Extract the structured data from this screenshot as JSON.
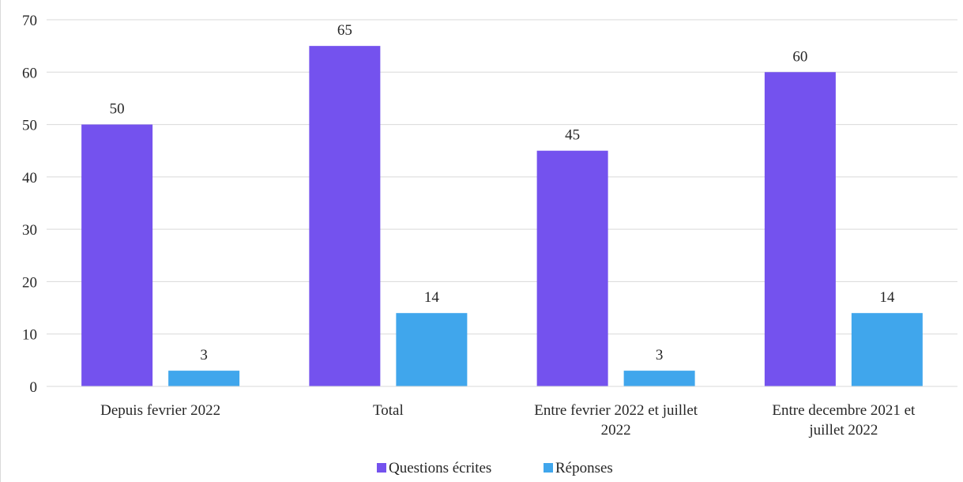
{
  "chart_data": {
    "type": "bar",
    "categories": [
      [
        "Depuis fevrier 2022"
      ],
      [
        "Total"
      ],
      [
        "Entre fevrier 2022 et juillet",
        "2022"
      ],
      [
        "Entre decembre 2021 et",
        "juillet 2022"
      ]
    ],
    "series": [
      {
        "name": "Questions écrites",
        "values": [
          50,
          65,
          45,
          60
        ],
        "color": "#7452EE"
      },
      {
        "name": "Réponses",
        "values": [
          3,
          14,
          3,
          14
        ],
        "color": "#40A6EC"
      }
    ],
    "title": "",
    "xlabel": "",
    "ylabel": "",
    "ylim": [
      0,
      70
    ],
    "yticks": [
      0,
      10,
      20,
      30,
      40,
      50,
      60,
      70
    ],
    "grid": true,
    "legend_position": "bottom",
    "gridline_color": "#d9d9d9"
  }
}
